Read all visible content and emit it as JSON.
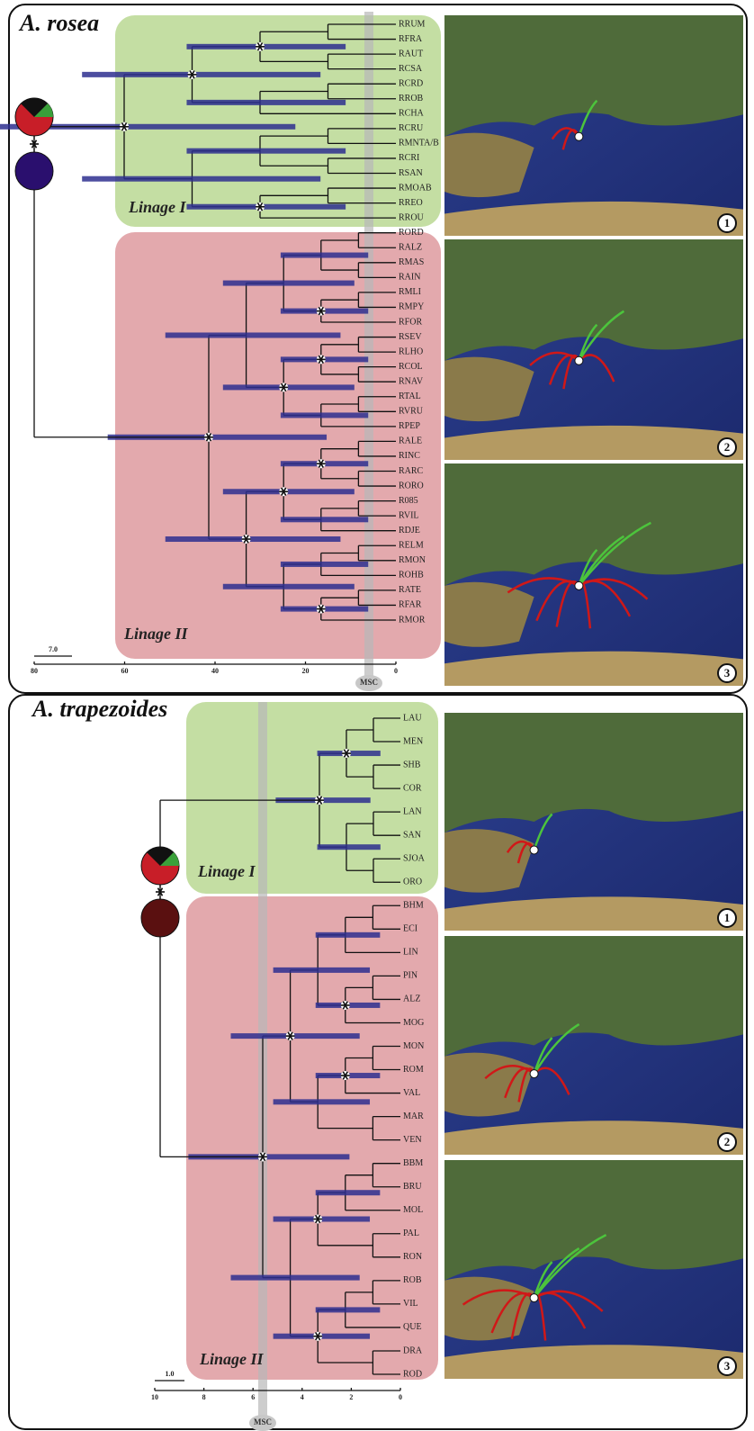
{
  "figure": {
    "panels": [
      {
        "title": "A. rosea",
        "clade_labels": [
          "Linage I",
          "Linage II"
        ],
        "tips": [
          "RRUM",
          "RFRA",
          "RAUT",
          "RCSA",
          "RCRD",
          "RROB",
          "RCHA",
          "RCRU",
          "RMNTA/B",
          "RCRI",
          "RSAN",
          "RMOAB",
          "RREO",
          "RROU",
          "RORD",
          "RALZ",
          "RMAS",
          "RAIN",
          "RMLI",
          "RMPY",
          "RFOR",
          "RSEV",
          "RLHO",
          "RCOL",
          "RNAV",
          "RTAL",
          "RVRU",
          "RPEP",
          "RALE",
          "RINC",
          "RARC",
          "RORO",
          "R085",
          "RVIL",
          "RDJE",
          "RELM",
          "RMON",
          "ROHB",
          "RATE",
          "RFAR",
          "RMOR"
        ],
        "axis_ticks": [
          "80",
          "60",
          "40",
          "20",
          "0"
        ],
        "scale_bar": "7.0",
        "band_label": "MSC",
        "map_labels": [
          "1",
          "2",
          "3"
        ]
      },
      {
        "title": "A. trapezoides",
        "clade_labels": [
          "Linage I",
          "Linage II"
        ],
        "tips": [
          "LAU",
          "MEN",
          "SHB",
          "COR",
          "LAN",
          "SAN",
          "SJOA",
          "ORO",
          "BHM",
          "ECI",
          "LIN",
          "PIN",
          "ALZ",
          "MOG",
          "MON",
          "ROM",
          "VAL",
          "MAR",
          "VEN",
          "BBM",
          "BRU",
          "MOL",
          "PAL",
          "RON",
          "ROB",
          "VIL",
          "QUE",
          "DRA",
          "ROD"
        ],
        "axis_ticks": [
          "10",
          "8",
          "6",
          "4",
          "2",
          "0"
        ],
        "scale_bar": "1.0",
        "band_label": "MSC",
        "map_labels": [
          "1",
          "2",
          "3"
        ]
      }
    ]
  }
}
